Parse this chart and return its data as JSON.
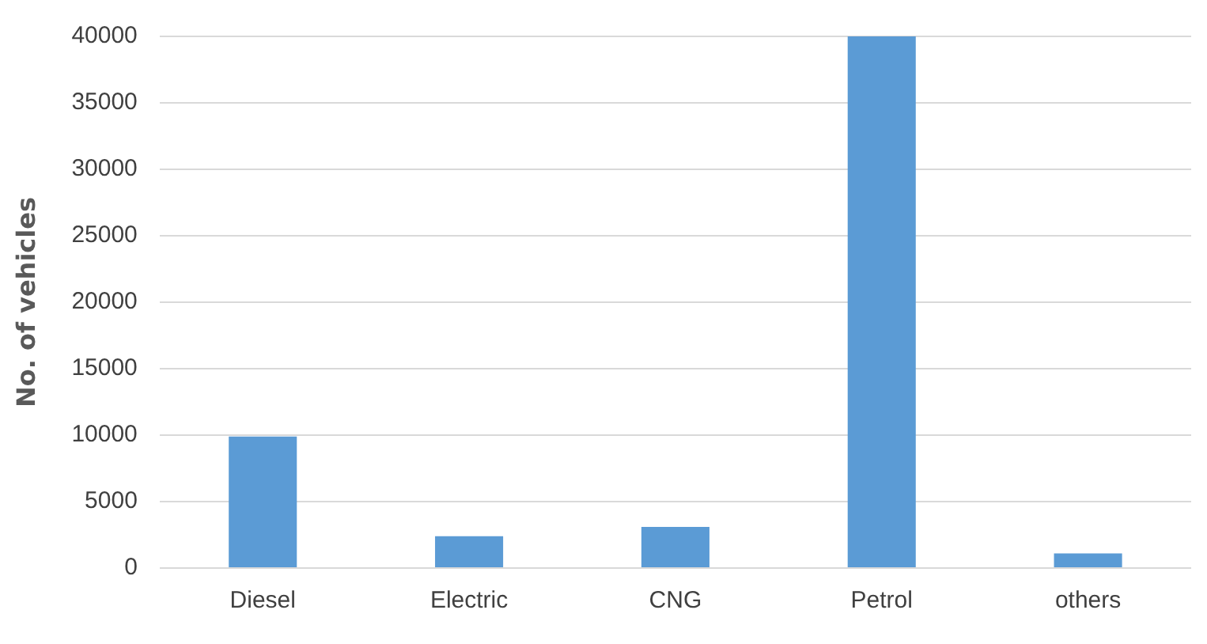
{
  "chart_data": {
    "type": "bar",
    "ylabel": "No. of vehicles",
    "categories": [
      "Diesel",
      "Electric",
      "CNG",
      "Petrol",
      "others"
    ],
    "values": [
      9900,
      2400,
      3100,
      40000,
      1100
    ],
    "color": "#5b9bd5",
    "ylim": [
      0,
      40000
    ],
    "yticks": [
      0,
      5000,
      10000,
      15000,
      20000,
      25000,
      30000,
      35000,
      40000
    ],
    "grid": "y",
    "legend": false
  }
}
